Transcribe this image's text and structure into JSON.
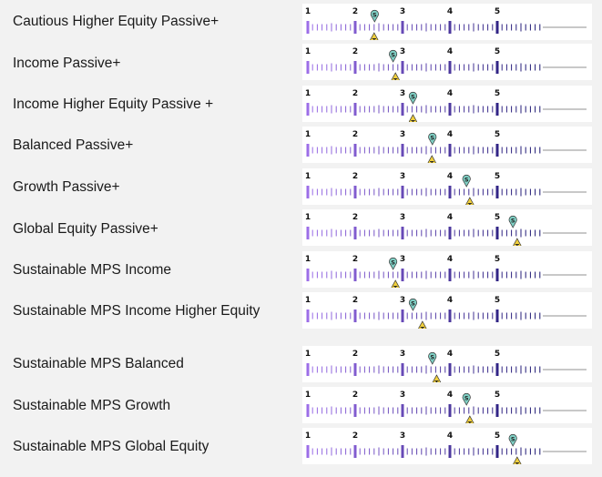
{
  "chart_data": {
    "type": "scatter",
    "title": "",
    "axis": {
      "ticks": [
        "1",
        "2",
        "3",
        "4",
        "5"
      ],
      "min": 1,
      "max": 6,
      "minor_per_unit": 10
    },
    "markers": {
      "S": {
        "label": "S",
        "color": "#7fcfc4"
      },
      "T": {
        "label": "T",
        "color": "#f0cf3d"
      }
    },
    "rows": [
      {
        "name": "Cautious Higher Equity Passive+",
        "s": 2.41,
        "t": 2.4
      },
      {
        "name": "Income Passive+",
        "s": 2.8,
        "t": 2.85
      },
      {
        "name": "Income Higher Equity Passive +",
        "s": 3.22,
        "t": 3.22
      },
      {
        "name": "Balanced Passive+",
        "s": 3.63,
        "t": 3.62
      },
      {
        "name": "Growth Passive+",
        "s": 4.35,
        "t": 4.42
      },
      {
        "name": "Global Equity Passive+",
        "s": 5.33,
        "t": 5.42
      },
      {
        "name": "Sustainable MPS Income",
        "s": 2.8,
        "t": 2.85
      },
      {
        "name": "Sustainable MPS Income Higher Equity",
        "s": 3.22,
        "t": 3.42
      },
      {
        "name": "Sustainable MPS Balanced",
        "s": 3.63,
        "t": 3.72
      },
      {
        "name": "Sustainable MPS Growth",
        "s": 4.35,
        "t": 4.42
      },
      {
        "name": "Sustainable MPS Global Equity",
        "s": 5.33,
        "t": 5.42
      }
    ]
  }
}
